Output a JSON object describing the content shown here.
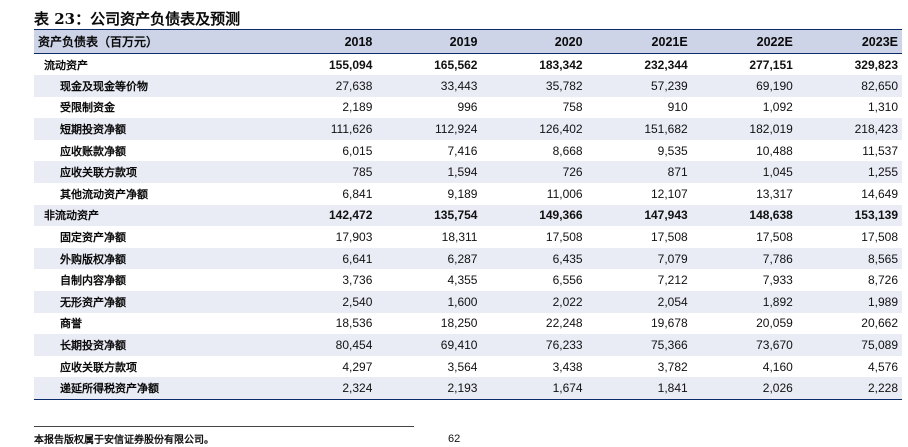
{
  "document": {
    "title": "表 23：公司资产负债表及预测",
    "footer_note": "本报告版权属于安信证券股份有限公司。",
    "page_number": "62"
  },
  "table": {
    "header": {
      "label": "资产负债表（百万元）",
      "years": [
        "2018",
        "2019",
        "2020",
        "2021E",
        "2022E",
        "2023E"
      ]
    },
    "rows": [
      {
        "label": "流动资产",
        "group": true,
        "values": [
          "155,094",
          "165,562",
          "183,342",
          "232,344",
          "277,151",
          "329,823"
        ]
      },
      {
        "label": "现金及现金等价物",
        "group": false,
        "values": [
          "27,638",
          "33,443",
          "35,782",
          "57,239",
          "69,190",
          "82,650"
        ]
      },
      {
        "label": "受限制资金",
        "group": false,
        "values": [
          "2,189",
          "996",
          "758",
          "910",
          "1,092",
          "1,310"
        ]
      },
      {
        "label": "短期投资净额",
        "group": false,
        "values": [
          "111,626",
          "112,924",
          "126,402",
          "151,682",
          "182,019",
          "218,423"
        ]
      },
      {
        "label": "应收账款净额",
        "group": false,
        "values": [
          "6,015",
          "7,416",
          "8,668",
          "9,535",
          "10,488",
          "11,537"
        ]
      },
      {
        "label": "应收关联方款项",
        "group": false,
        "values": [
          "785",
          "1,594",
          "726",
          "871",
          "1,045",
          "1,255"
        ]
      },
      {
        "label": "其他流动资产净额",
        "group": false,
        "values": [
          "6,841",
          "9,189",
          "11,006",
          "12,107",
          "13,317",
          "14,649"
        ]
      },
      {
        "label": "非流动资产",
        "group": true,
        "values": [
          "142,472",
          "135,754",
          "149,366",
          "147,943",
          "148,638",
          "153,139"
        ]
      },
      {
        "label": "固定资产净额",
        "group": false,
        "values": [
          "17,903",
          "18,311",
          "17,508",
          "17,508",
          "17,508",
          "17,508"
        ]
      },
      {
        "label": "外购版权净额",
        "group": false,
        "values": [
          "6,641",
          "6,287",
          "6,435",
          "7,079",
          "7,786",
          "8,565"
        ]
      },
      {
        "label": "自制内容净额",
        "group": false,
        "values": [
          "3,736",
          "4,355",
          "6,556",
          "7,212",
          "7,933",
          "8,726"
        ]
      },
      {
        "label": "无形资产净额",
        "group": false,
        "values": [
          "2,540",
          "1,600",
          "2,022",
          "2,054",
          "1,892",
          "1,989"
        ]
      },
      {
        "label": "商誉",
        "group": false,
        "values": [
          "18,536",
          "18,250",
          "22,248",
          "19,678",
          "20,059",
          "20,662"
        ]
      },
      {
        "label": "长期投资净额",
        "group": false,
        "values": [
          "80,454",
          "69,410",
          "76,233",
          "75,366",
          "73,670",
          "75,089"
        ]
      },
      {
        "label": "应收关联方款项",
        "group": false,
        "values": [
          "4,297",
          "3,564",
          "3,438",
          "3,782",
          "4,160",
          "4,576"
        ]
      },
      {
        "label": "递延所得税资产净额",
        "group": false,
        "values": [
          "2,324",
          "2,193",
          "1,674",
          "1,841",
          "2,026",
          "2,228"
        ]
      }
    ]
  }
}
